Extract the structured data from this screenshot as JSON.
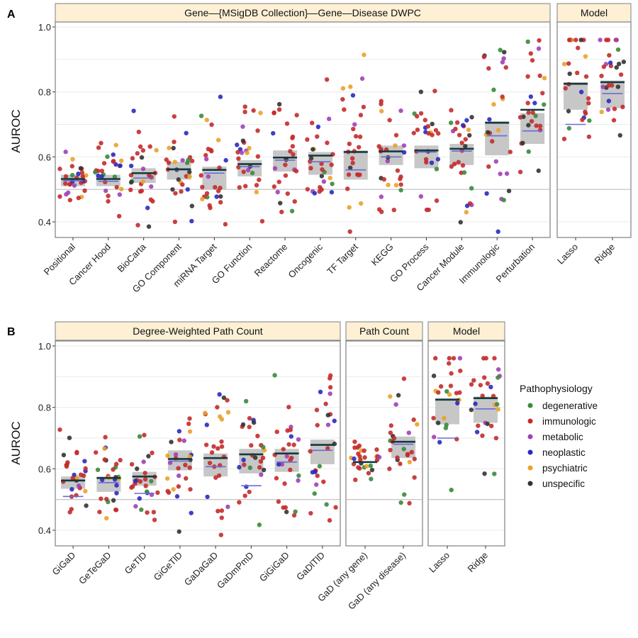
{
  "panel_tags": [
    "A",
    "B"
  ],
  "colors": {
    "degenerative": "#3a8a3a",
    "immunologic": "#c42b2b",
    "metabolic": "#a040b8",
    "neoplastic": "#2a2ac0",
    "psychiatric": "#eaa227",
    "unspecific": "#333333",
    "strip_fill": "#fdf0d5",
    "box_fill": "#c4c4c4",
    "mean_line": "#143a3c",
    "median_line": "#6a6ad6"
  },
  "legend": {
    "title": "Pathophysiology",
    "items": [
      {
        "label": "degenerative",
        "key": "degenerative"
      },
      {
        "label": "immunologic",
        "key": "immunologic"
      },
      {
        "label": "metabolic",
        "key": "metabolic"
      },
      {
        "label": "neoplastic",
        "key": "neoplastic"
      },
      {
        "label": "psychiatric",
        "key": "psychiatric"
      },
      {
        "label": "unspecific",
        "key": "unspecific"
      }
    ]
  },
  "chart_data": [
    {
      "type": "scatter",
      "panel": "A",
      "ylabel": "AUROC",
      "ylim": [
        0.35,
        1.01
      ],
      "yticks": [
        0.4,
        0.6,
        0.8,
        1.0
      ],
      "ytick_labels": [
        "0.4",
        "0.6",
        "0.8",
        "1.0"
      ],
      "reference_line": 0.5,
      "facets": [
        {
          "title": "Gene—{MSigDB Collection}—Gene—Disease DWPC",
          "categories": [
            {
              "label": "Positional",
              "box": [
                0.51,
                0.545
              ],
              "mean": 0.532,
              "median": 0.527
            },
            {
              "label": "Cancer Hood",
              "box": [
                0.51,
                0.545
              ],
              "mean": 0.532,
              "median": 0.525
            },
            {
              "label": "BioCarta",
              "box": [
                0.52,
                0.565
              ],
              "mean": 0.55,
              "median": 0.535
            },
            {
              "label": "GO Component",
              "box": [
                0.53,
                0.585
              ],
              "mean": 0.562,
              "median": 0.56
            },
            {
              "label": "miRNA Target",
              "box": [
                0.5,
                0.57
              ],
              "mean": 0.56,
              "median": 0.55
            },
            {
              "label": "GO Function",
              "box": [
                0.54,
                0.59
              ],
              "mean": 0.578,
              "median": 0.57
            },
            {
              "label": "Reactome",
              "box": [
                0.555,
                0.62
              ],
              "mean": 0.598,
              "median": 0.59
            },
            {
              "label": "Oncogenic",
              "box": [
                0.545,
                0.615
              ],
              "mean": 0.604,
              "median": 0.585
            },
            {
              "label": "TF Target",
              "box": [
                0.53,
                0.62
              ],
              "mean": 0.615,
              "median": 0.56
            },
            {
              "label": "KEGG",
              "box": [
                0.575,
                0.635
              ],
              "mean": 0.617,
              "median": 0.6
            },
            {
              "label": "GO Process",
              "box": [
                0.565,
                0.635
              ],
              "mean": 0.62,
              "median": 0.615
            },
            {
              "label": "Cancer Module",
              "box": [
                0.575,
                0.64
              ],
              "mean": 0.625,
              "median": 0.618
            },
            {
              "label": "Immunologic",
              "box": [
                0.605,
                0.71
              ],
              "mean": 0.705,
              "median": 0.665
            },
            {
              "label": "Perturbation",
              "box": [
                0.64,
                0.735
              ],
              "mean": 0.745,
              "median": 0.68
            }
          ]
        },
        {
          "title": "Model",
          "categories": [
            {
              "label": "Lasso",
              "box": [
                0.745,
                0.83
              ],
              "mean": 0.825,
              "median": 0.7
            },
            {
              "label": "Ridge",
              "box": [
                0.75,
                0.835
              ],
              "mean": 0.83,
              "median": 0.795
            }
          ]
        }
      ]
    },
    {
      "type": "scatter",
      "panel": "B",
      "ylabel": "AUROC",
      "ylim": [
        0.36,
        1.01
      ],
      "yticks": [
        0.4,
        0.6,
        0.8,
        1.0
      ],
      "ytick_labels": [
        "0.4",
        "0.6",
        "0.8",
        "1.0"
      ],
      "reference_line": 0.5,
      "facets": [
        {
          "title": "Degree-Weighted Path Count",
          "categories": [
            {
              "label": "GiGaD",
              "box": [
                0.535,
                0.575
              ],
              "mean": 0.562,
              "median": 0.51
            },
            {
              "label": "GeTeGaD",
              "box": [
                0.525,
                0.575
              ],
              "mean": 0.57,
              "median": 0.555
            },
            {
              "label": "GeTlD",
              "box": [
                0.545,
                0.59
              ],
              "mean": 0.575,
              "median": 0.52
            },
            {
              "label": "GiGeTlD",
              "box": [
                0.595,
                0.66
              ],
              "mean": 0.632,
              "median": 0.625
            },
            {
              "label": "GaDaGaD",
              "box": [
                0.575,
                0.65
              ],
              "mean": 0.635,
              "median": 0.607
            },
            {
              "label": "GaDmPmD",
              "box": [
                0.585,
                0.665
              ],
              "mean": 0.647,
              "median": 0.545
            },
            {
              "label": "GiGiGaD",
              "box": [
                0.59,
                0.665
              ],
              "mean": 0.65,
              "median": 0.622
            },
            {
              "label": "GaDlTlD",
              "box": [
                0.615,
                0.695
              ],
              "mean": 0.678,
              "median": 0.66
            }
          ]
        },
        {
          "title": "Path Count",
          "categories": [
            {
              "label": "GaD (any gene)",
              "box": [
                0.62,
                0.625
              ],
              "mean": 0.622,
              "median": 0.622
            },
            {
              "label": "GaD (any disease)",
              "box": [
                0.635,
                0.705
              ],
              "mean": 0.688,
              "median": 0.68
            }
          ]
        },
        {
          "title": "Model",
          "categories": [
            {
              "label": "Lasso",
              "box": [
                0.745,
                0.83
              ],
              "mean": 0.825,
              "median": 0.7
            },
            {
              "label": "Ridge",
              "box": [
                0.75,
                0.835
              ],
              "mean": 0.83,
              "median": 0.795
            }
          ]
        }
      ]
    }
  ]
}
